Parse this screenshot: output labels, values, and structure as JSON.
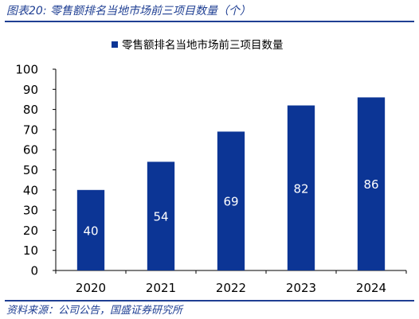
{
  "figure": {
    "title": "图表20:  零售额排名当地市场前三项目数量（个）",
    "source": "资料来源：公司公告，国盛证券研究所"
  },
  "chart_data": {
    "type": "bar",
    "categories": [
      "2020",
      "2021",
      "2022",
      "2023",
      "2024"
    ],
    "series": [
      {
        "name": "零售额排名当地市场前三项目数量",
        "values": [
          40,
          54,
          69,
          82,
          86
        ]
      }
    ],
    "data_labels": [
      "40",
      "54",
      "69",
      "82",
      "86"
    ],
    "ylim": [
      0,
      100
    ],
    "yticks": [
      0,
      10,
      20,
      30,
      40,
      50,
      60,
      70,
      80,
      90,
      100
    ],
    "legend_position": "top-center",
    "grid": false,
    "colors": {
      "bar": "#0c3595",
      "axis": "#000000",
      "label_in_bar": "#ffffff"
    }
  }
}
